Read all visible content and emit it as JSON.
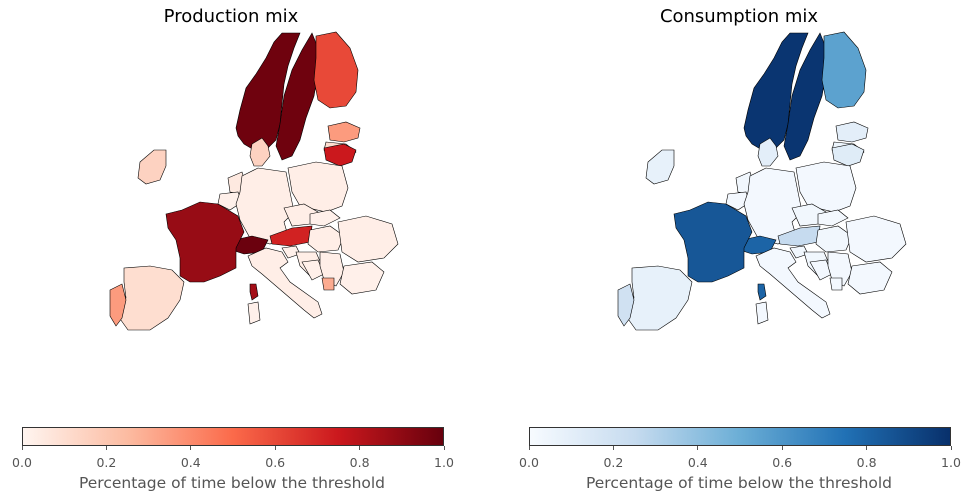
{
  "panels": [
    {
      "title": "Production mix",
      "colormap": "Reds",
      "colorbar": {
        "ticks": [
          "0.0",
          "0.2",
          "0.4",
          "0.6",
          "0.8",
          "1.0"
        ],
        "label": "Percentage of time below the threshold",
        "stops": [
          "#fff5f0",
          "#fcbba1",
          "#fb6a4a",
          "#cb181d",
          "#67000d"
        ]
      }
    },
    {
      "title": "Consumption mix",
      "colormap": "Blues",
      "colorbar": {
        "ticks": [
          "0.0",
          "0.2",
          "0.4",
          "0.6",
          "0.8",
          "1.0"
        ],
        "label": "Percentage of time below the threshold",
        "stops": [
          "#f7fbff",
          "#c6dbef",
          "#6baed6",
          "#2171b5",
          "#08306b"
        ]
      }
    }
  ],
  "chart_data": [
    {
      "type": "choropleth",
      "title": "Production mix",
      "value_range": [
        0,
        1
      ],
      "values": {
        "Norway": 0.98,
        "Sweden": 0.98,
        "Finland": 0.6,
        "Estonia": 0.35,
        "Latvia": 0.1,
        "Lithuania": 0.75,
        "Denmark": 0.15,
        "Ireland": 0.15,
        "Netherlands": 0.05,
        "Belgium": 0.02,
        "Germany": 0.03,
        "Poland": 0.03,
        "Czechia": 0.03,
        "Slovakia": 0.02,
        "Austria": 0.72,
        "Hungary": 0.03,
        "Switzerland": 0.99,
        "France": 0.88,
        "Italy": 0.03,
        "Slovenia": 0.02,
        "Croatia": 0.03,
        "Bosnia": 0.02,
        "Serbia": 0.03,
        "Montenegro": 0.3,
        "Romania": 0.03,
        "Bulgaria": 0.02,
        "Spain": 0.1,
        "Portugal": 0.35,
        "Corsica": 0.85,
        "Sardinia": 0.02
      }
    },
    {
      "type": "choropleth",
      "title": "Consumption mix",
      "value_range": [
        0,
        1
      ],
      "values": {
        "Norway": 0.98,
        "Sweden": 0.98,
        "Finland": 0.55,
        "Estonia": 0.1,
        "Latvia": 0.05,
        "Lithuania": 0.12,
        "Denmark": 0.1,
        "Ireland": 0.08,
        "Netherlands": 0.03,
        "Belgium": 0.02,
        "Germany": 0.02,
        "Poland": 0.02,
        "Czechia": 0.03,
        "Slovakia": 0.02,
        "Austria": 0.25,
        "Hungary": 0.03,
        "Switzerland": 0.8,
        "France": 0.85,
        "Italy": 0.02,
        "Slovenia": 0.03,
        "Croatia": 0.03,
        "Bosnia": 0.02,
        "Serbia": 0.02,
        "Montenegro": 0.02,
        "Romania": 0.02,
        "Bulgaria": 0.02,
        "Spain": 0.08,
        "Portugal": 0.2,
        "Corsica": 0.8,
        "Sardinia": 0.02
      }
    }
  ]
}
